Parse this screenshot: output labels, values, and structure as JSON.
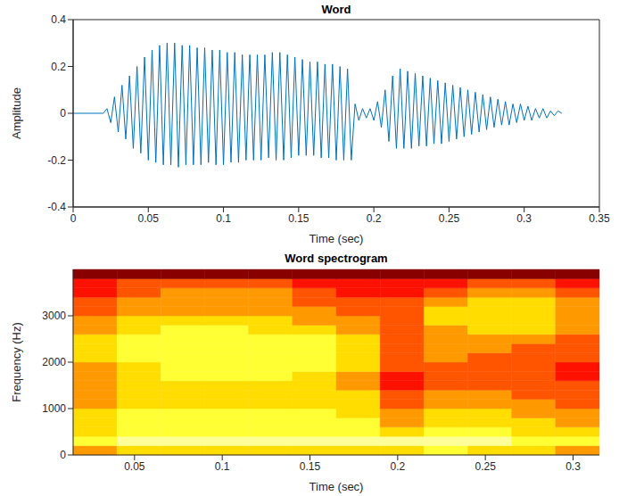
{
  "chart_data": [
    {
      "type": "line",
      "title": "Word",
      "xlabel": "Time (sec)",
      "ylabel": "Amplitude",
      "color": "#0072bd",
      "grid": false,
      "xlim": [
        0,
        0.35
      ],
      "xticks": [
        0,
        0.05,
        0.1,
        0.15,
        0.2,
        0.25,
        0.3,
        0.35
      ],
      "ylim": [
        -0.4,
        0.4
      ],
      "yticks": [
        -0.4,
        -0.2,
        0,
        0.2,
        0.4
      ],
      "x": [
        0,
        0.02,
        0.0225,
        0.025,
        0.0275,
        0.03,
        0.0325,
        0.035,
        0.0375,
        0.04,
        0.0425,
        0.045,
        0.0475,
        0.05,
        0.0525,
        0.055,
        0.0575,
        0.06,
        0.0625,
        0.065,
        0.0675,
        0.07,
        0.0725,
        0.075,
        0.0775,
        0.08,
        0.0825,
        0.085,
        0.0875,
        0.09,
        0.0925,
        0.095,
        0.0975,
        0.1,
        0.1025,
        0.105,
        0.1075,
        0.11,
        0.1125,
        0.115,
        0.1175,
        0.12,
        0.1225,
        0.125,
        0.1275,
        0.13,
        0.1325,
        0.135,
        0.1375,
        0.14,
        0.1425,
        0.145,
        0.1475,
        0.15,
        0.1525,
        0.155,
        0.1575,
        0.16,
        0.1625,
        0.165,
        0.1675,
        0.17,
        0.1725,
        0.175,
        0.1775,
        0.18,
        0.1825,
        0.185,
        0.1875,
        0.19,
        0.1925,
        0.195,
        0.1975,
        0.2,
        0.2025,
        0.205,
        0.2075,
        0.21,
        0.2125,
        0.215,
        0.2175,
        0.22,
        0.2225,
        0.225,
        0.2275,
        0.23,
        0.2325,
        0.235,
        0.2375,
        0.24,
        0.2425,
        0.245,
        0.2475,
        0.25,
        0.2525,
        0.255,
        0.2575,
        0.26,
        0.2625,
        0.265,
        0.2675,
        0.27,
        0.2725,
        0.275,
        0.2775,
        0.28,
        0.2825,
        0.285,
        0.2875,
        0.29,
        0.2925,
        0.295,
        0.2975,
        0.3,
        0.3025,
        0.305,
        0.3075,
        0.31,
        0.3125,
        0.315,
        0.3175,
        0.32,
        0.3225,
        0.325
      ],
      "values": [
        0,
        0,
        0.02,
        -0.04,
        0.07,
        -0.08,
        0.12,
        -0.11,
        0.16,
        -0.15,
        0.2,
        -0.17,
        0.24,
        -0.2,
        0.27,
        -0.21,
        0.29,
        -0.22,
        0.3,
        -0.22,
        0.3,
        -0.23,
        0.29,
        -0.22,
        0.29,
        -0.22,
        0.28,
        -0.22,
        0.28,
        -0.21,
        0.27,
        -0.22,
        0.27,
        -0.22,
        0.26,
        -0.21,
        0.26,
        -0.21,
        0.25,
        -0.2,
        0.25,
        -0.2,
        0.25,
        -0.2,
        0.25,
        -0.19,
        0.26,
        -0.2,
        0.26,
        -0.2,
        0.25,
        -0.19,
        0.24,
        -0.18,
        0.23,
        -0.18,
        0.22,
        -0.18,
        0.22,
        -0.19,
        0.21,
        -0.19,
        0.21,
        -0.2,
        0.2,
        -0.2,
        0.19,
        -0.2,
        0.04,
        -0.03,
        0.02,
        -0.02,
        0.02,
        -0.03,
        0.05,
        -0.06,
        0.1,
        -0.12,
        0.16,
        -0.15,
        0.19,
        -0.15,
        0.18,
        -0.15,
        0.17,
        -0.14,
        0.16,
        -0.14,
        0.15,
        -0.13,
        0.14,
        -0.13,
        0.13,
        -0.12,
        0.12,
        -0.11,
        0.11,
        -0.1,
        0.1,
        -0.09,
        0.09,
        -0.08,
        0.08,
        -0.07,
        0.07,
        -0.06,
        0.06,
        -0.05,
        0.05,
        -0.05,
        0.04,
        -0.04,
        0.04,
        -0.03,
        0.03,
        -0.03,
        0.02,
        -0.02,
        0.02,
        -0.02,
        0.01,
        -0.01,
        0.01,
        0
      ]
    },
    {
      "type": "heatmap",
      "title": "Word spectrogram",
      "xlabel": "Time (sec)",
      "ylabel": "Frequency (Hz)",
      "grid": false,
      "xlim": [
        0.015,
        0.315
      ],
      "xticks": [
        0.05,
        0.1,
        0.15,
        0.2,
        0.25,
        0.3
      ],
      "ylim": [
        0,
        4000
      ],
      "yticks": [
        0,
        1000,
        2000,
        3000
      ],
      "x_bins": [
        0.015,
        0.04,
        0.065,
        0.09,
        0.115,
        0.14,
        0.165,
        0.19,
        0.215,
        0.24,
        0.265,
        0.29,
        0.315
      ],
      "y_bins": [
        0,
        200,
        400,
        600,
        800,
        1000,
        1200,
        1400,
        1600,
        1800,
        2000,
        2200,
        2400,
        2600,
        2800,
        3000,
        3200,
        3400,
        3600,
        3800,
        4000
      ],
      "clim": [
        0,
        10
      ],
      "cells": [
        [
          6,
          7,
          7,
          7,
          7,
          7,
          7,
          7,
          8,
          7,
          7,
          6
        ],
        [
          8,
          9,
          9,
          9,
          9,
          9,
          9,
          9,
          9,
          9,
          8,
          8
        ],
        [
          7,
          8,
          8,
          8,
          8,
          8,
          8,
          7,
          8,
          8,
          7,
          7
        ],
        [
          7,
          8,
          8,
          8,
          8,
          8,
          8,
          6,
          7,
          7,
          7,
          6
        ],
        [
          7,
          8,
          8,
          8,
          8,
          8,
          7,
          6,
          7,
          7,
          6,
          6
        ],
        [
          6,
          7,
          7,
          7,
          7,
          7,
          7,
          5,
          6,
          6,
          6,
          5
        ],
        [
          6,
          7,
          7,
          7,
          7,
          7,
          7,
          5,
          6,
          6,
          5,
          5
        ],
        [
          6,
          7,
          7,
          7,
          7,
          7,
          6,
          4,
          5,
          5,
          5,
          5
        ],
        [
          6,
          7,
          8,
          8,
          8,
          7,
          6,
          4,
          5,
          5,
          5,
          4
        ],
        [
          6,
          7,
          8,
          8,
          8,
          8,
          7,
          5,
          5,
          5,
          5,
          4
        ],
        [
          7,
          8,
          8,
          8,
          8,
          8,
          7,
          5,
          6,
          5,
          5,
          5
        ],
        [
          7,
          8,
          8,
          8,
          8,
          8,
          7,
          5,
          6,
          6,
          5,
          5
        ],
        [
          7,
          8,
          8,
          8,
          8,
          8,
          7,
          5,
          6,
          6,
          6,
          5
        ],
        [
          6,
          7,
          8,
          8,
          7,
          7,
          6,
          5,
          6,
          7,
          7,
          6
        ],
        [
          6,
          7,
          7,
          7,
          7,
          6,
          6,
          5,
          7,
          7,
          7,
          6
        ],
        [
          5,
          6,
          6,
          6,
          6,
          6,
          5,
          5,
          7,
          7,
          7,
          6
        ],
        [
          5,
          6,
          6,
          6,
          6,
          5,
          5,
          5,
          6,
          7,
          7,
          6
        ],
        [
          4,
          5,
          6,
          6,
          6,
          5,
          4,
          4,
          5,
          6,
          6,
          5
        ],
        [
          4,
          5,
          5,
          5,
          5,
          4,
          4,
          4,
          4,
          5,
          5,
          4
        ],
        [
          2,
          2,
          2,
          2,
          2,
          2,
          2,
          2,
          2,
          2,
          2,
          2
        ]
      ]
    }
  ]
}
